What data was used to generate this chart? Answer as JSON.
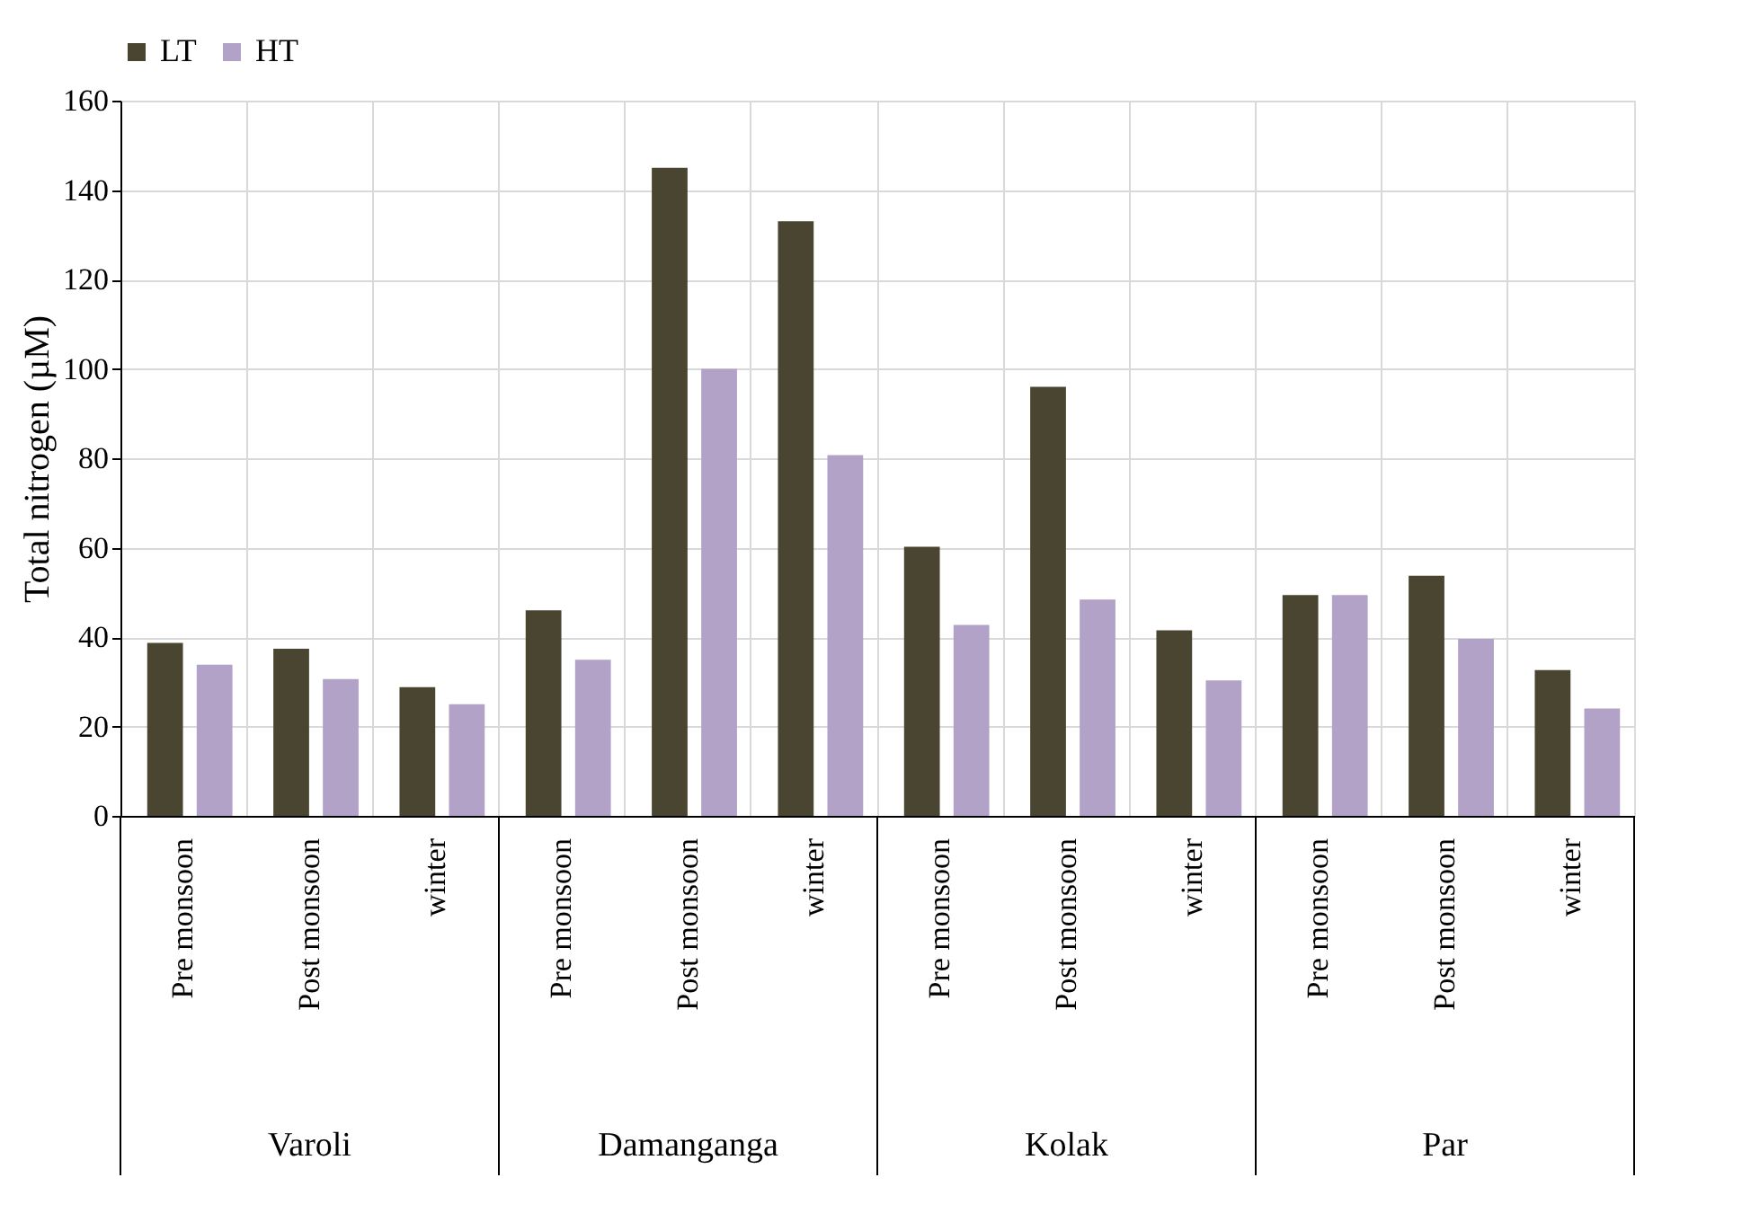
{
  "chart_data": {
    "type": "bar",
    "ylabel": "Total nitrogen (µM)",
    "categories": [
      "Pre monsoon",
      "Post monsoon",
      "winter",
      "Pre monsoon",
      "Post monsoon",
      "winter",
      "Pre monsoon",
      "Post monsoon",
      "winter",
      "Pre monsoon",
      "Post monsoon",
      "winter"
    ],
    "series": [
      {
        "name": "LT",
        "color": "#4a4530",
        "values": [
          38.7,
          37.4,
          28.8,
          46,
          145,
          133,
          60.2,
          96,
          41.5,
          49.4,
          53.7,
          32.6
        ]
      },
      {
        "name": "HT",
        "color": "#b3a2c8",
        "values": [
          33.8,
          30.6,
          25,
          34.9,
          100,
          80.7,
          42.7,
          48.4,
          30.3,
          49.4,
          39.6,
          24
        ]
      }
    ],
    "annotations": [
      "Varoli",
      "Damanganga",
      "Kolak",
      "Par"
    ],
    "ylim": [
      0,
      160
    ],
    "yticks": [
      0,
      20,
      40,
      60,
      80,
      100,
      120,
      140,
      160
    ],
    "grid": true,
    "legend": "top"
  }
}
